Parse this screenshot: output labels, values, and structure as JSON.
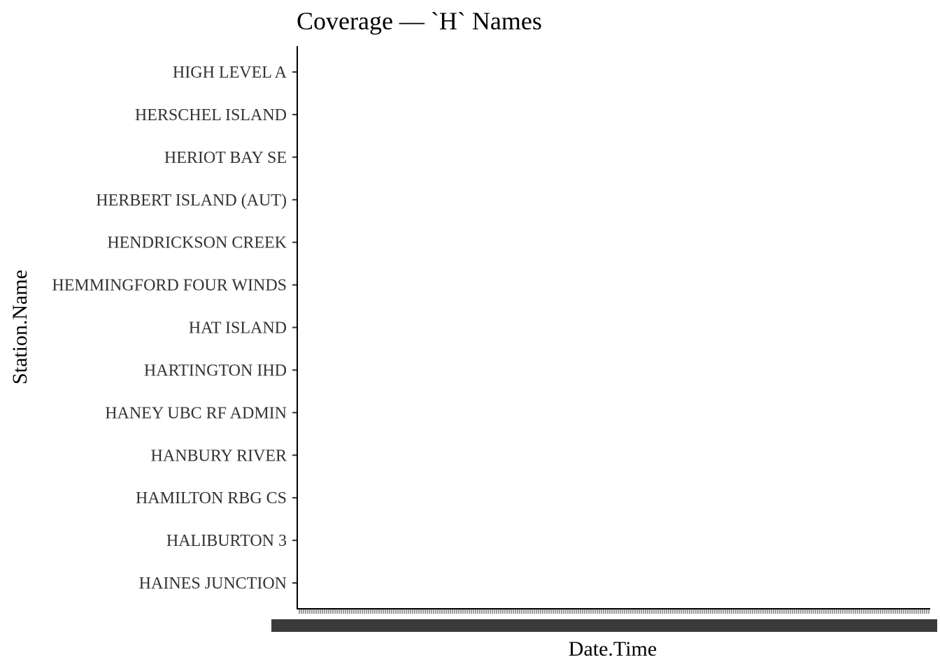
{
  "chart_data": {
    "type": "scatter",
    "title": "Coverage — `H` Names",
    "xlabel": "Date.Time",
    "ylabel": "Station.Name",
    "categories": [
      "HAINES JUNCTION",
      "HALIBURTON 3",
      "HAMILTON RBG CS",
      "HANBURY RIVER",
      "HANEY UBC RF ADMIN",
      "HARTINGTON IHD",
      "HAT ISLAND",
      "HEMMINGFORD FOUR WINDS",
      "HENDRICKSON CREEK",
      "HERBERT ISLAND (AUT)",
      "HERIOT BAY SE",
      "HERSCHEL ISLAND",
      "HIGH LEVEL A"
    ],
    "series": [],
    "grid": false,
    "legend": "none",
    "x_tick_labels_illegible": true
  }
}
